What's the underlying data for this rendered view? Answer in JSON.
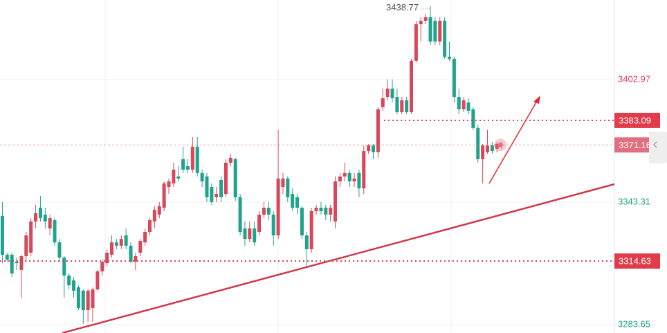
{
  "chart_data": {
    "type": "candlestick",
    "up_color": "#d9475a",
    "down_color": "#1fa38c",
    "open": [
      3336.6,
      3317.7,
      3317.7,
      3314.3,
      3310.3,
      3317.0,
      3318.7,
      3333.9,
      3340.6,
      3337.2,
      3330.5,
      3334.5,
      3323.7,
      3316.3,
      3307.6,
      3305.2,
      3301.8,
      3300.2,
      3290.7,
      3291.7,
      3300.8,
      3309.6,
      3313.6,
      3317.7,
      3323.7,
      3322.1,
      3327.1,
      3322.1,
      3314.3,
      3318.7,
      3323.7,
      3328.8,
      3333.9,
      3337.2,
      3340.6,
      3350.7,
      3352.4,
      3355.8,
      3364.2,
      3360.8,
      3359.1,
      3370.3,
      3357.5,
      3355.8,
      3350.7,
      3345.7,
      3354.1,
      3347.3,
      3362.5,
      3364.2,
      3345.7,
      3330.5,
      3325.4,
      3330.5,
      3328.8,
      3337.2,
      3340.6,
      3337.2,
      3327.1,
      3350.7,
      3354.8,
      3347.3,
      3345.7,
      3340.6,
      3327.1,
      3320.4,
      3338.9,
      3340.6,
      3340.6,
      3337.2,
      3333.9,
      3353.4,
      3355.8,
      3357.5,
      3353.4,
      3357.5,
      3350.0,
      3368.2,
      3370.9,
      3367.6,
      3389.5,
      3394.5,
      3398.6,
      3394.5,
      3387.1,
      3392.9,
      3387.1,
      3412.1,
      3429.9,
      3431.6,
      3433.3,
      3431.6,
      3421.5,
      3431.6,
      3414.1,
      3413.1,
      3394.5,
      3388.5,
      3391.8,
      3388.5,
      3379.4,
      3364.2,
      3367.6,
      3370.9,
      3369.3,
      3370.9
    ],
    "high": [
      3343.3,
      3318.7,
      3318.7,
      3316.3,
      3317.7,
      3328.8,
      3335.5,
      3342.0,
      3346.3,
      3340.6,
      3337.2,
      3335.5,
      3325.4,
      3317.0,
      3308.6,
      3306.9,
      3302.8,
      3300.8,
      3300.8,
      3301.8,
      3310.3,
      3315.3,
      3320.4,
      3327.1,
      3325.4,
      3327.1,
      3330.5,
      3323.7,
      3318.7,
      3325.4,
      3330.5,
      3335.5,
      3341.3,
      3343.3,
      3353.4,
      3354.8,
      3362.5,
      3360.8,
      3370.3,
      3364.2,
      3375.0,
      3375.0,
      3359.1,
      3357.5,
      3352.4,
      3350.7,
      3355.8,
      3364.2,
      3366.9,
      3364.9,
      3347.3,
      3333.9,
      3333.9,
      3333.9,
      3338.9,
      3343.3,
      3343.3,
      3338.9,
      3378.4,
      3357.5,
      3355.8,
      3350.0,
      3347.3,
      3341.3,
      3328.8,
      3340.6,
      3342.0,
      3343.3,
      3342.0,
      3342.0,
      3355.8,
      3357.5,
      3362.5,
      3359.1,
      3357.5,
      3359.1,
      3370.9,
      3371.6,
      3371.6,
      3389.5,
      3398.6,
      3403.0,
      3403.0,
      3398.6,
      3394.5,
      3394.5,
      3413.1,
      3431.6,
      3433.3,
      3435.0,
      3438.77,
      3433.3,
      3433.3,
      3433.3,
      3421.5,
      3414.1,
      3398.6,
      3394.5,
      3393.9,
      3389.5,
      3381.1,
      3371.6,
      3378.4,
      3372.6,
      3372.6,
      3372.6
    ],
    "low": [
      3313.6,
      3314.3,
      3306.9,
      3310.3,
      3296.8,
      3314.3,
      3317.0,
      3330.5,
      3333.9,
      3330.5,
      3327.1,
      3322.1,
      3314.3,
      3296.8,
      3300.8,
      3296.8,
      3290.7,
      3284.0,
      3285.0,
      3285.0,
      3300.2,
      3307.6,
      3312.0,
      3316.3,
      3320.4,
      3320.4,
      3320.4,
      3313.6,
      3310.3,
      3317.0,
      3322.1,
      3327.1,
      3330.5,
      3335.5,
      3338.9,
      3347.3,
      3350.7,
      3353.4,
      3357.5,
      3357.5,
      3357.5,
      3355.8,
      3350.7,
      3343.3,
      3342.0,
      3343.3,
      3343.3,
      3345.7,
      3360.8,
      3344.0,
      3327.1,
      3322.1,
      3323.7,
      3322.1,
      3327.1,
      3335.5,
      3334.5,
      3322.1,
      3325.4,
      3347.3,
      3343.3,
      3338.9,
      3337.2,
      3325.4,
      3312.0,
      3318.7,
      3337.2,
      3337.2,
      3334.5,
      3333.9,
      3330.5,
      3350.7,
      3353.4,
      3350.7,
      3350.7,
      3345.7,
      3347.3,
      3366.9,
      3364.2,
      3364.9,
      3387.8,
      3392.9,
      3391.8,
      3386.1,
      3386.1,
      3386.1,
      3386.1,
      3411.4,
      3421.5,
      3429.9,
      3419.8,
      3419.8,
      3419.8,
      3413.1,
      3412.1,
      3391.8,
      3386.1,
      3387.1,
      3386.1,
      3378.4,
      3362.5,
      3352.4,
      3366.9,
      3366.9,
      3367.6,
      3369.3
    ],
    "close": [
      3317.7,
      3315.3,
      3308.6,
      3313.6,
      3317.0,
      3327.1,
      3333.9,
      3337.9,
      3335.5,
      3333.9,
      3335.5,
      3323.7,
      3316.3,
      3307.6,
      3302.8,
      3300.2,
      3291.7,
      3290.7,
      3300.2,
      3300.8,
      3309.6,
      3314.3,
      3318.7,
      3323.7,
      3322.1,
      3325.4,
      3322.1,
      3314.3,
      3317.0,
      3324.4,
      3328.8,
      3334.5,
      3339.6,
      3341.3,
      3352.4,
      3353.4,
      3359.1,
      3354.8,
      3359.1,
      3359.1,
      3370.3,
      3357.5,
      3353.4,
      3345.7,
      3343.3,
      3347.3,
      3345.7,
      3362.5,
      3364.9,
      3345.7,
      3328.8,
      3325.4,
      3330.5,
      3323.7,
      3337.2,
      3340.6,
      3337.2,
      3327.1,
      3354.8,
      3354.8,
      3345.7,
      3340.6,
      3340.6,
      3327.1,
      3320.4,
      3338.9,
      3340.6,
      3338.9,
      3337.2,
      3340.6,
      3353.4,
      3355.8,
      3357.5,
      3353.4,
      3354.8,
      3350.0,
      3368.2,
      3370.9,
      3367.6,
      3388.5,
      3393.9,
      3398.6,
      3393.9,
      3387.1,
      3392.9,
      3387.1,
      3412.1,
      3429.9,
      3431.6,
      3433.3,
      3421.5,
      3421.5,
      3431.6,
      3414.1,
      3413.1,
      3394.5,
      3388.5,
      3392.9,
      3387.8,
      3379.4,
      3364.2,
      3370.9,
      3370.9,
      3368.2,
      3371.6,
      3371.16
    ],
    "ylim": [
      3279.6,
      3441.7
    ],
    "yticks": [
      3283.65,
      3343.31,
      3402.97
    ],
    "grid": true,
    "max_label": 3438.77,
    "price_lines": [
      {
        "value": 3383.09,
        "color": "#e03c4b",
        "style": "dotted"
      },
      {
        "value": 3371.16,
        "color": "#e0707e",
        "style": "current"
      },
      {
        "value": 3314.63,
        "color": "#e03c4b",
        "style": "dotted"
      }
    ]
  }
}
